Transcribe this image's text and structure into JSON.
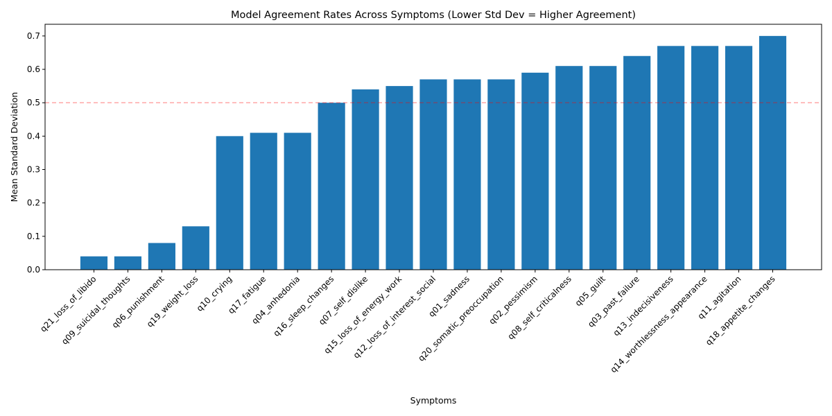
{
  "chart_data": {
    "type": "bar",
    "title": "Model Agreement Rates Across Symptoms (Lower Std Dev = Higher Agreement)",
    "xlabel": "Symptoms",
    "ylabel": "Mean Standard Deviation",
    "ylim": [
      0,
      0.735
    ],
    "yticks": [
      0.0,
      0.1,
      0.2,
      0.3,
      0.4,
      0.5,
      0.6,
      0.7
    ],
    "ytick_labels": [
      "0.0",
      "0.1",
      "0.2",
      "0.3",
      "0.4",
      "0.5",
      "0.6",
      "0.7"
    ],
    "grid": false,
    "bar_color": "#1f77b4",
    "reference_line": {
      "y": 0.5,
      "color": "#ff0000",
      "style": "dashed"
    },
    "categories": [
      "q21_loss_of_libido",
      "q09_suicidal_thoughts",
      "q06_punishment",
      "q19_weight_loss",
      "q10_crying",
      "q17_fatigue",
      "q04_anhedonia",
      "q16_sleep_changes",
      "q07_self_dislike",
      "q15_loss_of_energy_work",
      "q12_loss_of_interest_social",
      "q01_sadness",
      "q20_somatic_preoccupation",
      "q02_pessimism",
      "q08_self_criticalness",
      "q05_guilt",
      "q03_past_failure",
      "q13_indecisiveness",
      "q14_worthlessness_appearance",
      "q11_agitation",
      "q18_appetite_changes"
    ],
    "values": [
      0.04,
      0.04,
      0.08,
      0.13,
      0.4,
      0.41,
      0.41,
      0.5,
      0.54,
      0.55,
      0.57,
      0.57,
      0.57,
      0.59,
      0.61,
      0.61,
      0.64,
      0.67,
      0.67,
      0.67,
      0.7
    ]
  }
}
